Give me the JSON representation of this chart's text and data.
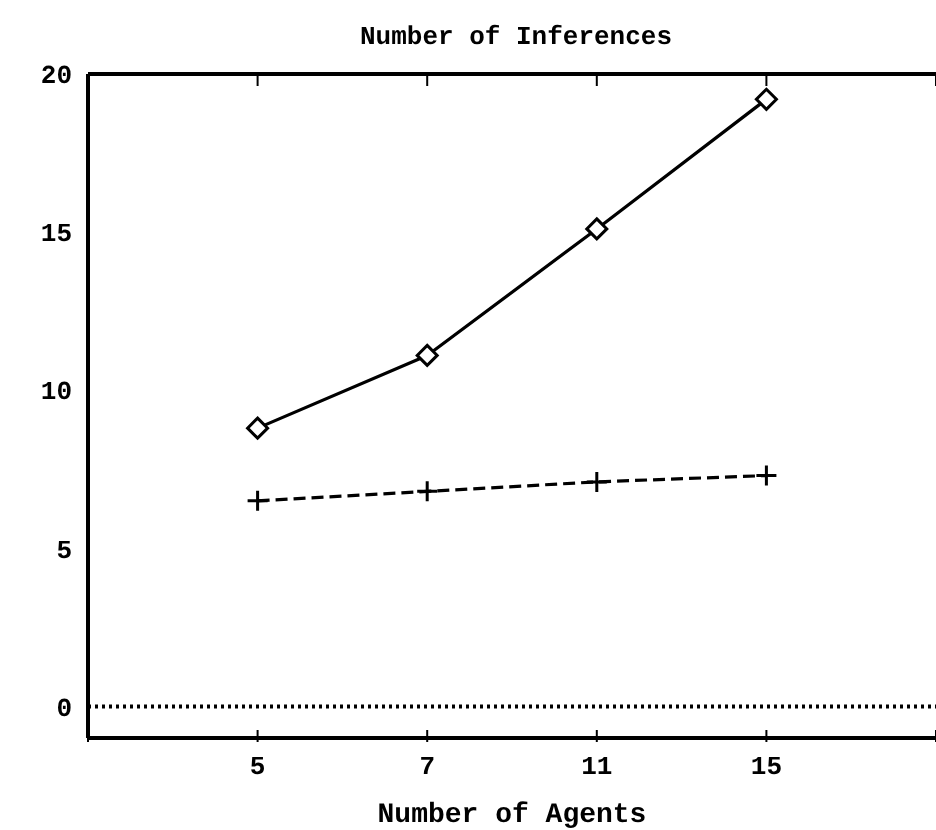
{
  "chart_data": {
    "type": "line",
    "title": "Number of Inferences",
    "xlabel": "Number of Agents",
    "categories": [
      null,
      "5",
      "7",
      "11",
      "15",
      null
    ],
    "ylim": [
      -1,
      20
    ],
    "yticks": [
      0,
      5,
      10,
      15,
      20
    ],
    "grid": false,
    "legend": false,
    "series": [
      {
        "color": "#000000",
        "marker": "diamond",
        "line_style": "solid",
        "values": [
          null,
          8.8,
          11.1,
          15.1,
          19.2,
          null
        ]
      },
      {
        "color": "#000000",
        "marker": "cross",
        "line_style": "dashed",
        "values": [
          null,
          6.5,
          6.8,
          7.1,
          7.3,
          null
        ]
      },
      {
        "color": "#000000",
        "marker": "none",
        "line_style": "dotted",
        "values": [
          0,
          0,
          0,
          0,
          0,
          0
        ]
      }
    ]
  }
}
